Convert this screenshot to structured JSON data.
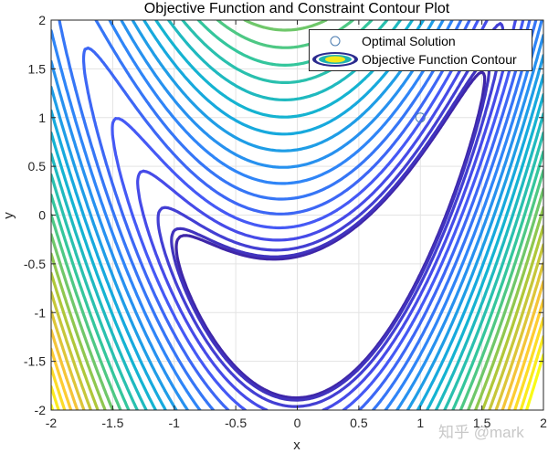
{
  "chart_data": {
    "type": "contour",
    "title": "Objective Function and Constraint Contour Plot",
    "xlabel": "x",
    "ylabel": "y",
    "xlim": [
      -2,
      2
    ],
    "ylim": [
      -2,
      2
    ],
    "xticks": [
      "-2",
      "-1.5",
      "-1",
      "-0.5",
      "0",
      "0.5",
      "1",
      "1.5",
      "2"
    ],
    "yticks": [
      "2",
      "1.5",
      "1",
      "0.5",
      "0",
      "-0.5",
      "-1",
      "-1.5",
      "-2"
    ],
    "grid": true,
    "legend_position": "northeast",
    "legend": [
      "Optimal Solution",
      "Objective Function Contour"
    ],
    "optimal_point": {
      "x": 1,
      "y": 1
    },
    "colormap": "parula",
    "contour_model": {
      "valley_offset": 1.15,
      "valley_x": 0.27,
      "valley_weight": 1.0,
      "x_weight": 0.35,
      "levels": 26,
      "level_min": 0.55,
      "level_step_scale": 1.0
    }
  },
  "watermark": "知乎 @mark"
}
